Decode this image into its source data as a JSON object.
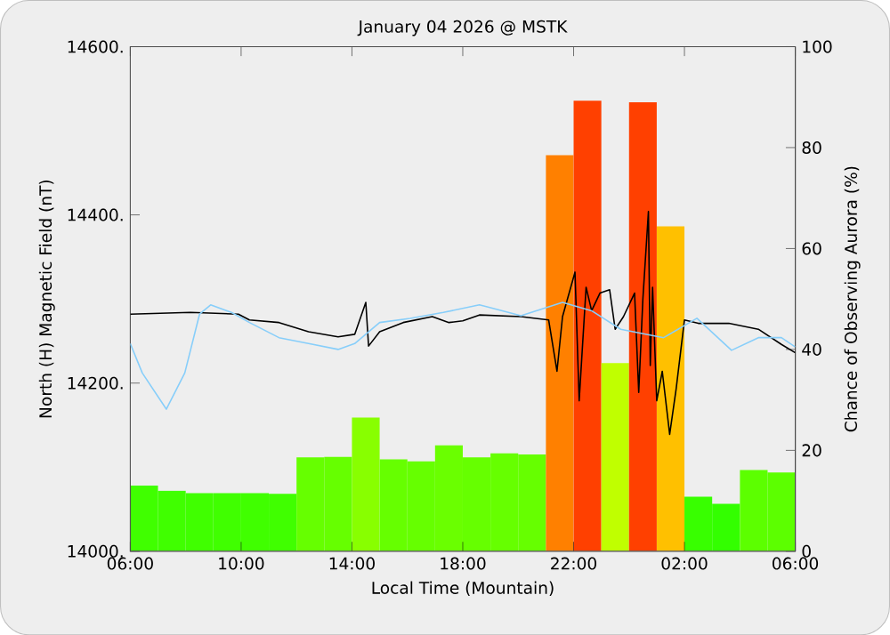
{
  "chart_data": {
    "type": "bar",
    "title": "January 04 2026 @ MSTK",
    "xlabel": "Local Time (Mountain)",
    "ylabel": "North (H) Magnetic Field (nT)",
    "y2label": "Chance of Observing Aurora (%)",
    "xlim": [
      "2026-01-04T06:00",
      "2026-01-05T06:00"
    ],
    "xticks": [
      {
        "value": "2026-01-04T06:00",
        "label": "06:00"
      },
      {
        "value": "2026-01-04T10:00",
        "label": "10:00"
      },
      {
        "value": "2026-01-04T14:00",
        "label": "14:00"
      },
      {
        "value": "2026-01-04T18:00",
        "label": "18:00"
      },
      {
        "value": "2026-01-04T22:00",
        "label": "22:00"
      },
      {
        "value": "2026-01-05T02:00",
        "label": "02:00"
      },
      {
        "value": "2026-01-05T06:00",
        "label": "06:00"
      }
    ],
    "ylim": [
      14000,
      14600
    ],
    "yticks": [
      {
        "value": 14000,
        "label": "14000."
      },
      {
        "value": 14200,
        "label": "14200."
      },
      {
        "value": 14400,
        "label": "14400."
      },
      {
        "value": 14600,
        "label": "14600."
      }
    ],
    "y2lim": [
      0,
      100
    ],
    "y2ticks": [
      0,
      20,
      40,
      60,
      80,
      100
    ],
    "series": [
      {
        "axis": "y2",
        "x": [
          "2026-01-04T06:30",
          "2026-01-04T07:30",
          "2026-01-04T08:30",
          "2026-01-04T09:30",
          "2026-01-04T10:30",
          "2026-01-04T11:30",
          "2026-01-04T12:30",
          "2026-01-04T13:30",
          "2026-01-04T14:30",
          "2026-01-04T15:30",
          "2026-01-04T16:30",
          "2026-01-04T17:30",
          "2026-01-04T18:30",
          "2026-01-04T19:30",
          "2026-01-04T20:30",
          "2026-01-04T21:30",
          "2026-01-04T22:30",
          "2026-01-04T23:30",
          "2026-01-05T00:30",
          "2026-01-05T01:30",
          "2026-01-05T02:30",
          "2026-01-05T03:30",
          "2026-01-05T04:30",
          "2026-01-05T05:30"
        ],
        "values": [
          13,
          12,
          11.5,
          11.5,
          11.5,
          11.4,
          18.6,
          18.7,
          26.5,
          18.2,
          17.8,
          21,
          18.6,
          19.4,
          19.2,
          78.5,
          89.3,
          37.3,
          89,
          64.4,
          10.8,
          9.4,
          16.1,
          15.6
        ],
        "colors": [
          "#40ff00",
          "#40ff00",
          "#40ff00",
          "#40ff00",
          "#40ff00",
          "#40ff00",
          "#66ff00",
          "#66ff00",
          "#88ff00",
          "#66ff00",
          "#66ff00",
          "#6aff00",
          "#66ff00",
          "#66ff00",
          "#66ff00",
          "#ff8000",
          "#ff4000",
          "#c0ff00",
          "#ff4000",
          "#ffc000",
          "#38ff00",
          "#33ff00",
          "#5cff00",
          "#5cff00"
        ]
      },
      {
        "type": "line",
        "color": "#000000",
        "x": [
          "2026-01-04T06:00",
          "2026-01-04T08:10",
          "2026-01-04T09:54",
          "2026-01-04T10:18",
          "2026-01-04T11:22",
          "2026-01-04T12:26",
          "2026-01-04T13:30",
          "2026-01-04T14:06",
          "2026-01-04T14:30",
          "2026-01-04T14:36",
          "2026-01-04T15:00",
          "2026-01-04T15:51",
          "2026-01-04T16:54",
          "2026-01-04T17:30",
          "2026-01-04T18:00",
          "2026-01-04T18:36",
          "2026-01-04T20:06",
          "2026-01-04T21:06",
          "2026-01-04T21:24",
          "2026-01-04T21:36",
          "2026-01-04T22:03",
          "2026-01-04T22:12",
          "2026-01-04T22:27",
          "2026-01-04T22:39",
          "2026-01-04T22:57",
          "2026-01-04T23:18",
          "2026-01-04T23:30",
          "2026-01-04T23:48",
          "2026-01-05T00:12",
          "2026-01-05T00:21",
          "2026-01-05T00:30",
          "2026-01-05T00:42",
          "2026-01-05T00:46",
          "2026-01-05T00:51",
          "2026-01-05T01:00",
          "2026-01-05T01:12",
          "2026-01-05T01:28",
          "2026-01-05T01:42",
          "2026-01-05T02:00",
          "2026-01-05T02:30",
          "2026-01-05T03:36",
          "2026-01-05T04:40",
          "2026-01-05T05:30",
          "2026-01-05T06:00"
        ],
        "values": [
          14282,
          14284,
          14282,
          14275,
          14272,
          14261,
          14255,
          14258,
          14296,
          14244,
          14261,
          14272,
          14279,
          14272,
          14274,
          14281,
          14279,
          14275,
          14214,
          14279,
          14332,
          14179,
          14314,
          14286,
          14307,
          14311,
          14264,
          14279,
          14307,
          14189,
          14300,
          14404,
          14221,
          14314,
          14179,
          14214,
          14139,
          14193,
          14275,
          14271,
          14271,
          14264,
          14246,
          14236
        ]
      },
      {
        "type": "line",
        "color": "#87cefa",
        "x": [
          "2026-01-04T06:00",
          "2026-01-04T06:26",
          "2026-01-04T07:18",
          "2026-01-04T07:58",
          "2026-01-04T08:30",
          "2026-01-04T08:54",
          "2026-01-04T09:39",
          "2026-01-04T10:18",
          "2026-01-04T11:22",
          "2026-01-04T12:26",
          "2026-01-04T13:30",
          "2026-01-04T14:06",
          "2026-01-04T15:00",
          "2026-01-04T16:06",
          "2026-01-04T17:18",
          "2026-01-04T18:36",
          "2026-01-04T18:51",
          "2026-01-04T20:06",
          "2026-01-04T21:36",
          "2026-01-04T22:39",
          "2026-01-04T23:42",
          "2026-01-05T01:15",
          "2026-01-05T02:27",
          "2026-01-05T03:42",
          "2026-01-05T04:40",
          "2026-01-05T05:30",
          "2026-01-05T06:00"
        ],
        "values": [
          14247,
          14212,
          14169,
          14212,
          14282,
          14293,
          14284,
          14272,
          14254,
          14247,
          14240,
          14247,
          14272,
          14277,
          14284,
          14293,
          14291,
          14280,
          14296,
          14286,
          14264,
          14254,
          14277,
          14239,
          14254,
          14254,
          14243
        ]
      }
    ]
  }
}
